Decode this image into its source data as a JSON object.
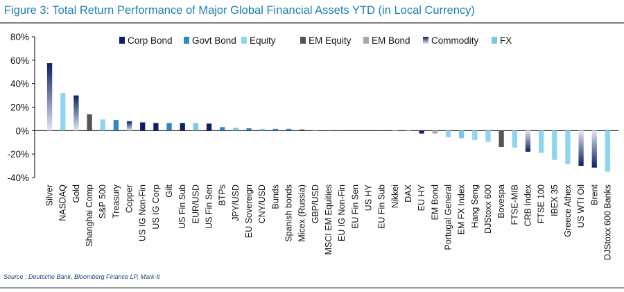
{
  "title": "Figure 3: Total Return Performance of Major Global Financial Assets YTD (in Local Currency)",
  "source": "Source : Deutsche Bank, Bloomberg Finance LP, Mark-It",
  "chart_data": {
    "type": "bar",
    "ylim": [
      -40,
      80
    ],
    "yticks": [
      80,
      60,
      40,
      20,
      0,
      -20,
      -40
    ],
    "ytick_labels": [
      "80%",
      "60%",
      "40%",
      "20%",
      "0%",
      "-20%",
      "-40%"
    ],
    "grid": false,
    "legend_position": "top",
    "legend": [
      {
        "key": "corp",
        "label": "Corp Bond",
        "color": "#0b1f66"
      },
      {
        "key": "govt",
        "label": "Govt Bond",
        "color": "#2e86c9"
      },
      {
        "key": "equity",
        "label": "Equity",
        "color": "#8fd4f1"
      },
      {
        "key": "emeq",
        "label": "EM Equity",
        "color": "#555555"
      },
      {
        "key": "embond",
        "label": "EM Bond",
        "color": "#a8a8a8"
      },
      {
        "key": "commodity",
        "label": "Commodity",
        "color": "#1a2f7a"
      },
      {
        "key": "fx",
        "label": "FX",
        "color": "#7ec6ec"
      }
    ],
    "categories": [
      "Silver",
      "NASDAQ",
      "Gold",
      "Shanghai Comp",
      "S&P 500",
      "Treasury",
      "Copper",
      "US IG Non-Fin",
      "US IG Corp",
      "Gilt",
      "US Fin Sub",
      "EUR/USD",
      "US Fin Sen",
      "BTPs",
      "JPY/USD",
      "EU Sovereign",
      "CNY/USD",
      "Bunds",
      "Spanish bonds",
      "Micex (Russia)",
      "GBP/USD",
      "MSCI EM Equities",
      "EU IG Non-Fin",
      "EU Fin Sen",
      "US HY",
      "EU Fin Sub",
      "Nikkei",
      "DAX",
      "EU HY",
      "EM Bond",
      "Portugal General",
      "EM FX Index",
      "Hang Seng",
      "DJStoxx 600",
      "Bovespa",
      "FTSE-MIB",
      "CRB Index",
      "FTSE 100",
      "IBEX 35",
      "Greece Athex",
      "US WTI Oil",
      "Brent",
      "DJStoxx 600 Banks"
    ],
    "values": [
      57.5,
      32,
      30,
      14,
      9.5,
      9,
      8,
      7,
      6.5,
      6.5,
      6.5,
      6.5,
      6,
      3,
      2.5,
      2,
      1.5,
      1.5,
      1.5,
      1,
      0.5,
      0.3,
      0.2,
      0.1,
      0,
      0,
      -0.2,
      -0.3,
      -2.5,
      -2.5,
      -5.5,
      -6.5,
      -8,
      -9.5,
      -14,
      -14.5,
      -18,
      -19,
      -25,
      -28.5,
      -30,
      -31.5,
      -35
    ],
    "classes": [
      "commodity",
      "equity",
      "commodity",
      "emeq",
      "equity",
      "govt",
      "commodity",
      "corp",
      "corp",
      "govt",
      "corp",
      "fx",
      "corp",
      "govt",
      "fx",
      "govt",
      "fx",
      "govt",
      "govt",
      "emeq",
      "fx",
      "emeq",
      "corp",
      "corp",
      "corp",
      "corp",
      "equity",
      "equity",
      "corp",
      "embond",
      "equity",
      "fx",
      "equity",
      "equity",
      "emeq",
      "equity",
      "commodity",
      "equity",
      "equity",
      "equity",
      "commodity",
      "commodity",
      "equity"
    ]
  }
}
